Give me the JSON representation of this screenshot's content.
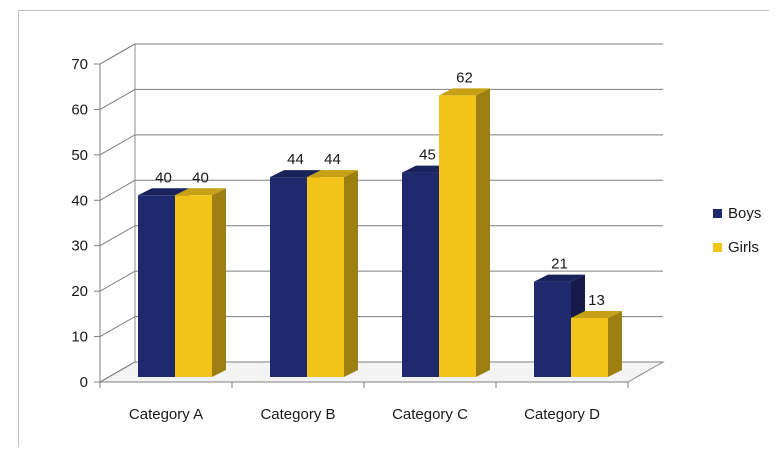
{
  "chart_data": {
    "type": "bar",
    "categories": [
      "Category A",
      "Category B",
      "Category C",
      "Category D"
    ],
    "series": [
      {
        "name": "Boys",
        "values": [
          40,
          44,
          45,
          21
        ],
        "color": "#1f2a6e"
      },
      {
        "name": "Girls",
        "values": [
          40,
          44,
          62,
          13
        ],
        "color": "#f2c41a"
      }
    ],
    "ylim": [
      0,
      70
    ],
    "yticks": [
      0,
      10,
      20,
      30,
      40,
      50,
      60,
      70
    ],
    "grid": true,
    "legend_position": "right",
    "style": "3d-clustered-column"
  }
}
